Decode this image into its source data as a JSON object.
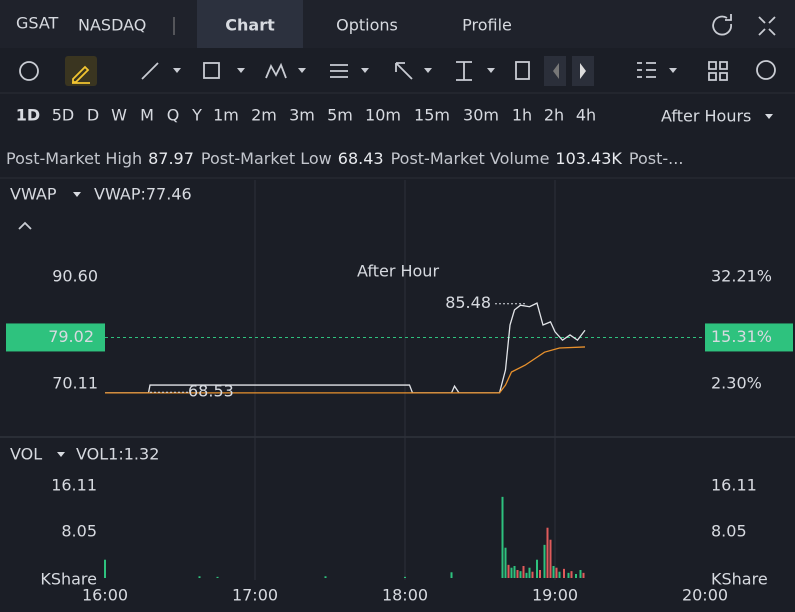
{
  "header": {
    "ticker": "GSAT",
    "exchange": "NASDAQ",
    "tabs": [
      "Chart",
      "Options",
      "Profile"
    ],
    "active_tab": 0
  },
  "timeframes": [
    "1D",
    "5D",
    "D",
    "W",
    "M",
    "Q",
    "Y",
    "1m",
    "2m",
    "3m",
    "5m",
    "10m",
    "15m",
    "30m",
    "1h",
    "2h",
    "4h"
  ],
  "active_timeframe": 0,
  "session": "After Hours",
  "stats": [
    {
      "label": "Post-Market High",
      "value": 87.97
    },
    {
      "label": "Post-Market Low",
      "value": 68.43
    },
    {
      "label": "Post-Market Volume",
      "value": "103.43K"
    }
  ],
  "stats_more": "Post-...",
  "chart_data": [
    {
      "type": "line",
      "indicator": "VWAP",
      "indicator_label": "VWAP:77.46",
      "watermark": "After Hour",
      "xlim": [
        16,
        20
      ],
      "xticks": [
        {
          "value": 16,
          "label": "16:00"
        },
        {
          "value": 17,
          "label": "17:00"
        },
        {
          "value": 18,
          "label": "18:00"
        },
        {
          "value": 19,
          "label": "19:00"
        },
        {
          "value": 20,
          "label": "20:00"
        }
      ],
      "ylim": [
        60.91,
        102.86
      ],
      "yticks": [
        {
          "value": 90.6,
          "label": "90.60"
        },
        70.11
      ],
      "y2lim": [
        -11.12,
        50.09
      ],
      "y2ticks": [
        {
          "value": 32.21,
          "label": "32.21%"
        },
        {
          "value": 2.3,
          "label": "2.30%"
        }
      ],
      "current": 79.02,
      "current_pct": {
        "value": 15.31,
        "label": "15.31%"
      },
      "current_color": "#2ec27e",
      "series": [
        {
          "color": "#e2e4e8",
          "x": [
            16.0,
            16.29,
            16.3,
            18.03,
            18.05,
            18.31,
            18.33,
            18.36,
            18.63,
            18.67,
            18.7,
            18.73,
            18.77,
            18.83,
            18.88,
            18.92,
            18.97,
            19.0,
            19.05,
            19.1,
            19.15,
            19.2
          ],
          "values": [
            68.4,
            68.4,
            69.9,
            69.9,
            68.4,
            68.4,
            69.7,
            68.4,
            68.4,
            72.8,
            81.4,
            84.3,
            85.2,
            84.9,
            85.6,
            81.4,
            82.0,
            80.1,
            78.5,
            79.5,
            78.5,
            80.4
          ]
        },
        {
          "color": "#e8912d",
          "x": [
            16.0,
            18.63,
            18.67,
            18.71,
            18.8,
            18.93,
            19.03,
            19.2
          ],
          "values": [
            68.4,
            68.4,
            69.9,
            72.4,
            73.7,
            76.2,
            77.0,
            77.2
          ]
        }
      ],
      "annotations": [
        {
          "x": 18.8,
          "y": 85.48
        },
        {
          "x": 16.3,
          "y": 68.53
        }
      ]
    },
    {
      "type": "bar",
      "indicator": "VOL",
      "indicator_label": "VOL1:1.32",
      "xlim": [
        16,
        20
      ],
      "ylim": [
        0,
        20.3
      ],
      "yticks": [
        16.11,
        8.05,
        {
          "value": 0,
          "label": "KShare"
        }
      ],
      "x": [
        16.0,
        16.63,
        16.75,
        17.47,
        18.0,
        18.31,
        18.65,
        18.67,
        18.69,
        18.71,
        18.73,
        18.75,
        18.77,
        18.79,
        18.81,
        18.83,
        18.85,
        18.88,
        18.9,
        18.93,
        18.95,
        18.97,
        18.99,
        19.01,
        19.03,
        19.06,
        19.09,
        19.11,
        19.14,
        19.17,
        19.19
      ],
      "values": [
        3.2,
        0.3,
        0.2,
        0.3,
        0.2,
        1.0,
        14.2,
        5.3,
        2.3,
        1.8,
        2.1,
        1.4,
        1.2,
        2.1,
        0.9,
        1.8,
        1.1,
        3.2,
        1.4,
        5.8,
        8.8,
        6.7,
        2.1,
        1.8,
        1.1,
        1.6,
        0.9,
        1.2,
        0.7,
        1.4,
        0.9
      ],
      "colors": [
        "#2ec27e",
        "#2ec27e",
        "#2ec27e",
        "#2ec27e",
        "#2ec27e",
        "#2ec27e",
        "#2ec27e",
        "#2ec27e",
        "#e05b5b",
        "#2ec27e",
        "#2ec27e",
        "#e05b5b",
        "#2ec27e",
        "#e05b5b",
        "#2ec27e",
        "#2ec27e",
        "#e05b5b",
        "#2ec27e",
        "#e05b5b",
        "#2ec27e",
        "#e05b5b",
        "#e05b5b",
        "#2ec27e",
        "#e05b5b",
        "#2ec27e",
        "#e05b5b",
        "#2ec27e",
        "#e05b5b",
        "#2ec27e",
        "#2ec27e",
        "#e05b5b"
      ]
    }
  ]
}
